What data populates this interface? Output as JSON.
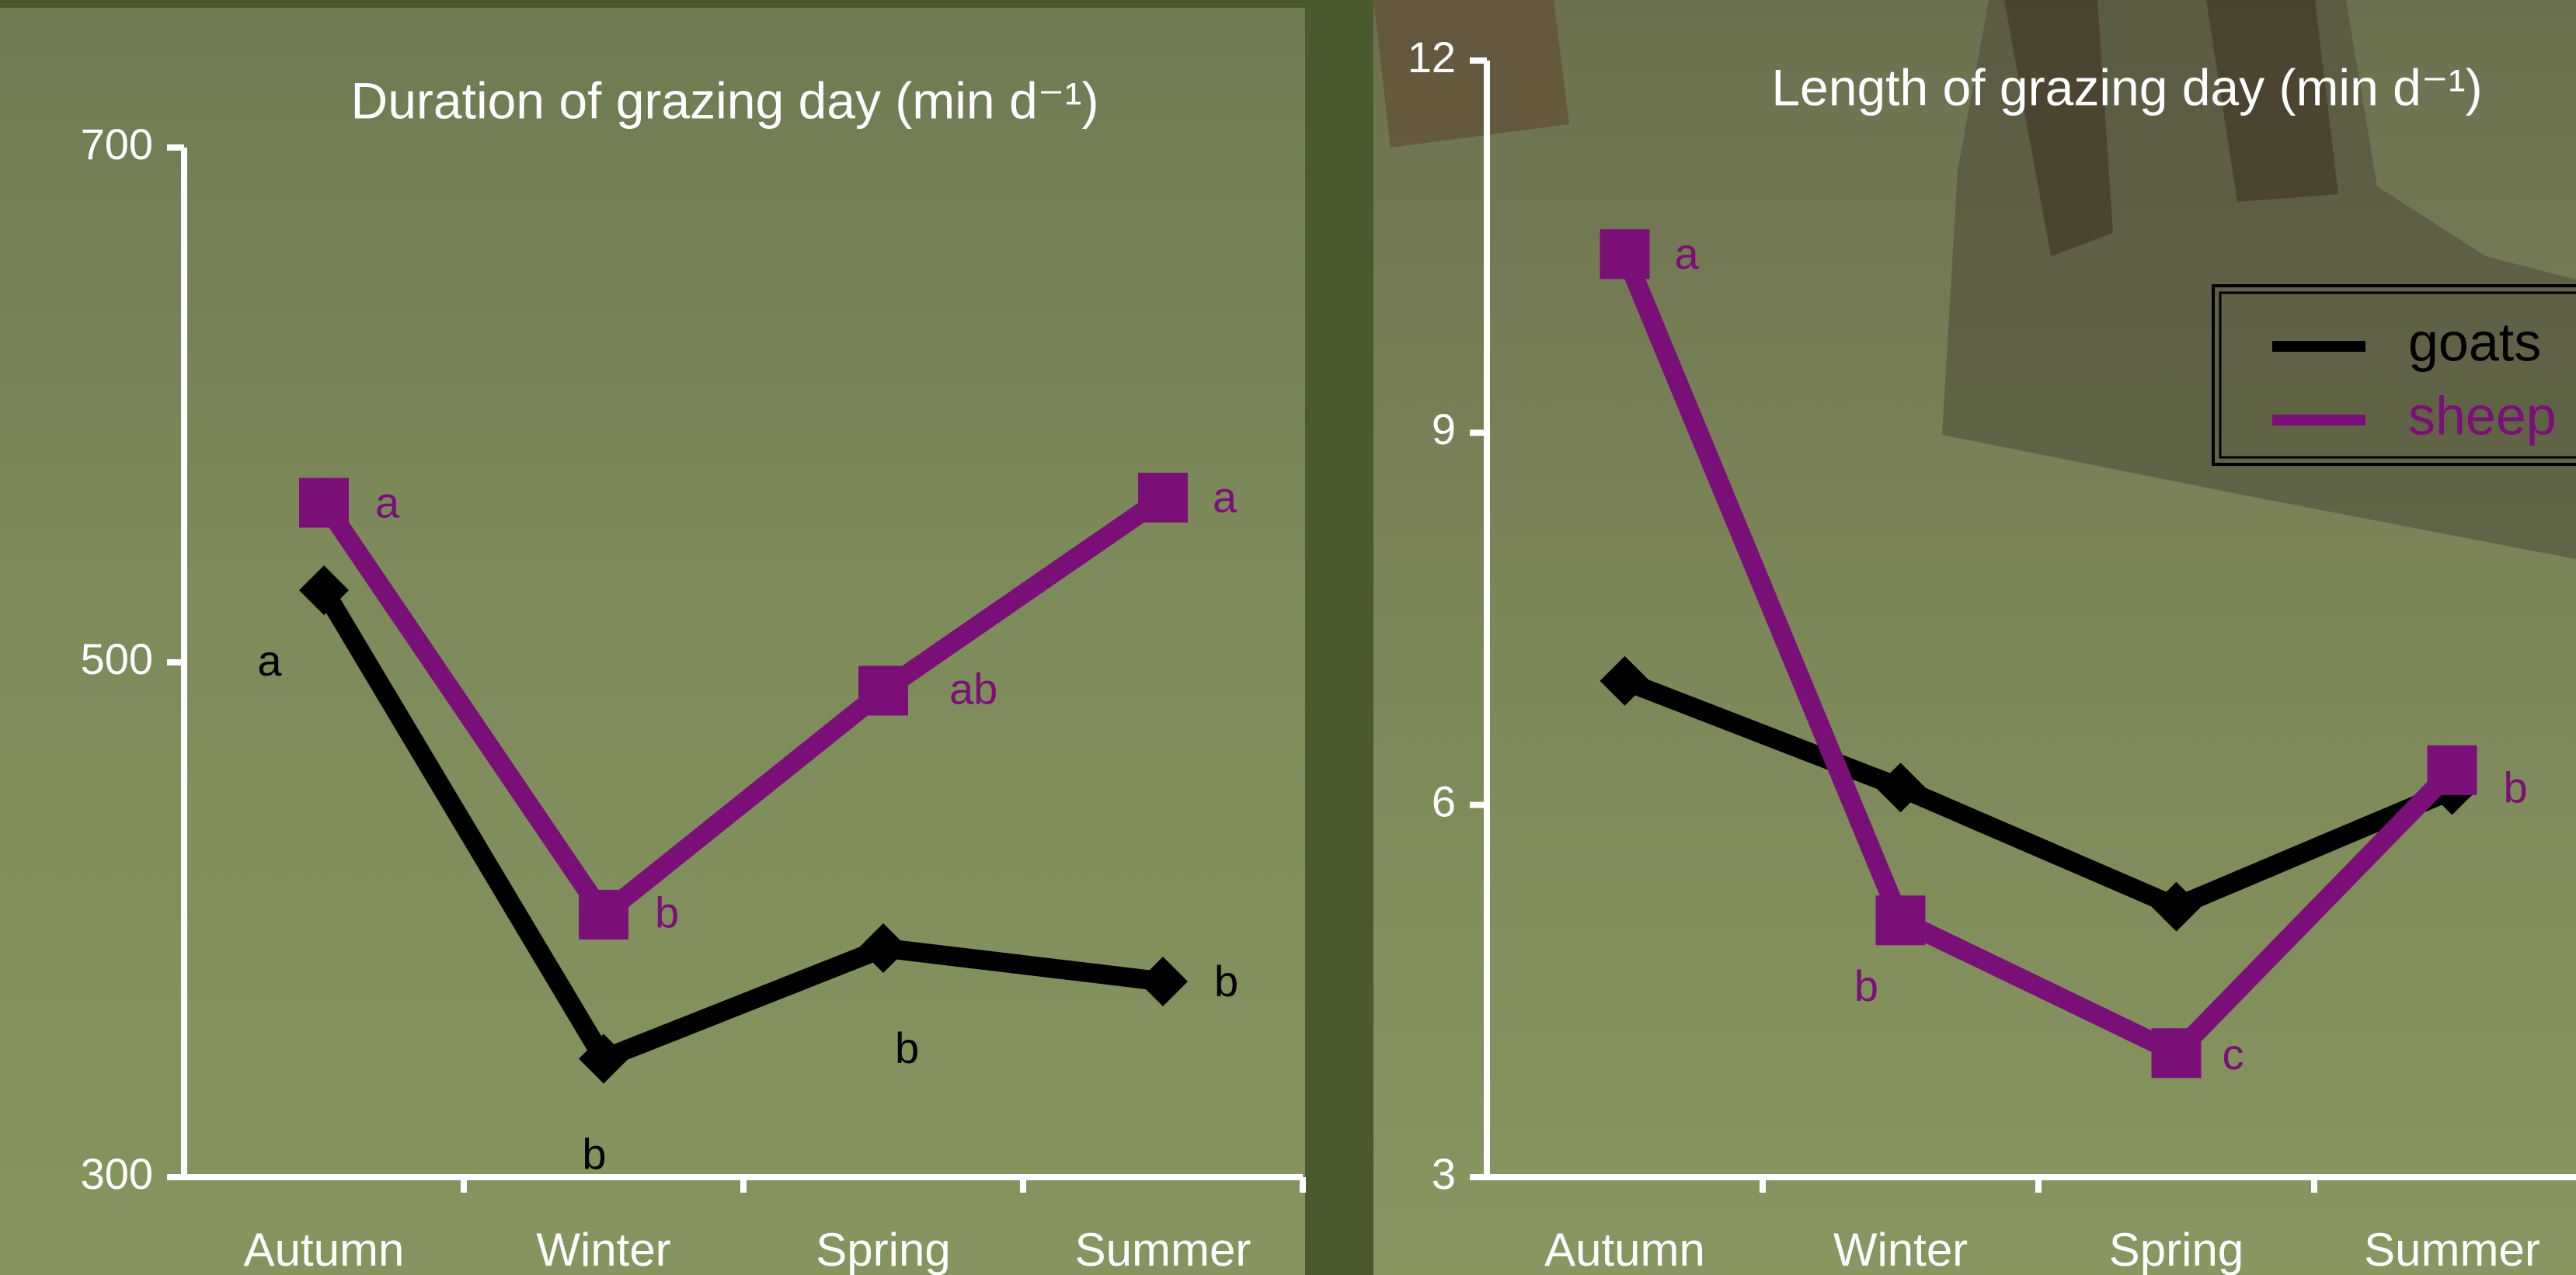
{
  "chart_data": [
    {
      "type": "line",
      "title": "Duration of grazing day (min d⁻¹)",
      "categories": [
        "Autumn",
        "Winter",
        "Spring",
        "Summer"
      ],
      "series": [
        {
          "name": "goats",
          "color": "#000000",
          "marker": "diamond",
          "values": [
            528,
            346,
            389,
            376
          ],
          "letters": [
            "a",
            "b",
            "b",
            "b"
          ]
        },
        {
          "name": "sheep",
          "color": "#7a0f78",
          "marker": "square",
          "values": [
            562,
            402,
            489,
            564
          ],
          "letters": [
            "a",
            "b",
            "ab",
            "a"
          ]
        }
      ],
      "ylim": [
        300,
        700
      ],
      "yticks": [
        300,
        500,
        700
      ],
      "legend": false
    },
    {
      "type": "line",
      "title": "Length of grazing day (min d⁻¹)",
      "categories": [
        "Autumn",
        "Winter",
        "Spring",
        "Summer"
      ],
      "series": [
        {
          "name": "goats",
          "color": "#000000",
          "marker": "diamond",
          "values": [
            7.0,
            6.14,
            5.18,
            6.12
          ]
        },
        {
          "name": "sheep",
          "color": "#7a0f78",
          "marker": "square",
          "values": [
            10.44,
            5.07,
            4.0,
            6.28
          ],
          "letters": [
            "a",
            "b",
            "c",
            "b"
          ]
        }
      ],
      "ylim": [
        3,
        12
      ],
      "yticks": [
        3,
        6,
        9,
        12
      ],
      "legend": "upper right"
    }
  ]
}
